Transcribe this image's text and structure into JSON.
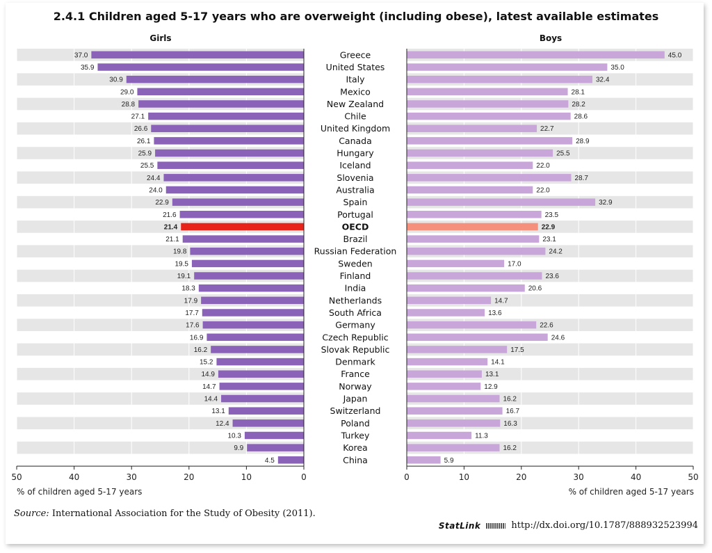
{
  "chart_data": {
    "type": "bar",
    "title": "2.4.1 Children aged 5-17 years who are overweight (including obese), latest available estimates",
    "categories": [
      "Greece",
      "United States",
      "Italy",
      "Mexico",
      "New Zealand",
      "Chile",
      "United Kingdom",
      "Canada",
      "Hungary",
      "Iceland",
      "Slovenia",
      "Australia",
      "Spain",
      "Portugal",
      "OECD",
      "Brazil",
      "Russian Federation",
      "Sweden",
      "Finland",
      "India",
      "Netherlands",
      "South Africa",
      "Germany",
      "Czech Republic",
      "Slovak Republic",
      "Denmark",
      "France",
      "Norway",
      "Japan",
      "Switzerland",
      "Poland",
      "Turkey",
      "Korea",
      "China"
    ],
    "highlight_category": "OECD",
    "series": [
      {
        "name": "Girls",
        "values": [
          37.0,
          35.9,
          30.9,
          29.0,
          28.8,
          27.1,
          26.6,
          26.1,
          25.9,
          25.5,
          24.4,
          24.0,
          22.9,
          21.6,
          21.4,
          21.1,
          19.8,
          19.5,
          19.1,
          18.3,
          17.9,
          17.7,
          17.6,
          16.9,
          16.2,
          15.2,
          14.9,
          14.7,
          14.4,
          13.1,
          12.4,
          10.3,
          9.9,
          4.5
        ]
      },
      {
        "name": "Boys",
        "values": [
          45.0,
          35.0,
          32.4,
          28.1,
          28.2,
          28.6,
          22.7,
          28.9,
          25.5,
          22.0,
          28.7,
          22.0,
          32.9,
          23.5,
          22.9,
          23.1,
          24.2,
          17.0,
          23.6,
          20.6,
          14.7,
          13.6,
          22.6,
          24.6,
          17.5,
          14.1,
          13.1,
          12.9,
          16.2,
          16.7,
          16.3,
          11.3,
          16.2,
          5.9
        ]
      }
    ],
    "xlim": [
      0,
      50
    ],
    "ticks": [
      0,
      10,
      20,
      30,
      40,
      50
    ],
    "tick_labels_girls": [
      "50",
      "40",
      "30",
      "20",
      "10",
      "0"
    ],
    "tick_labels_boys": [
      "0",
      "10",
      "20",
      "30",
      "40",
      "50"
    ],
    "xlabel": "% of children aged 5-17 years",
    "colors": {
      "girls": "#8a62b8",
      "boys": "#c9a6d9",
      "girls_highlight": "#e8231a",
      "boys_highlight": "#f4907c",
      "row_band": "#e6e6e6"
    }
  },
  "footer": {
    "source_label": "Source:",
    "source_text": "International Association for the Study of Obesity (2011).",
    "statlink_label": "StatLink",
    "statlink_url": "http://dx.doi.org/10.1787/888932523994"
  }
}
